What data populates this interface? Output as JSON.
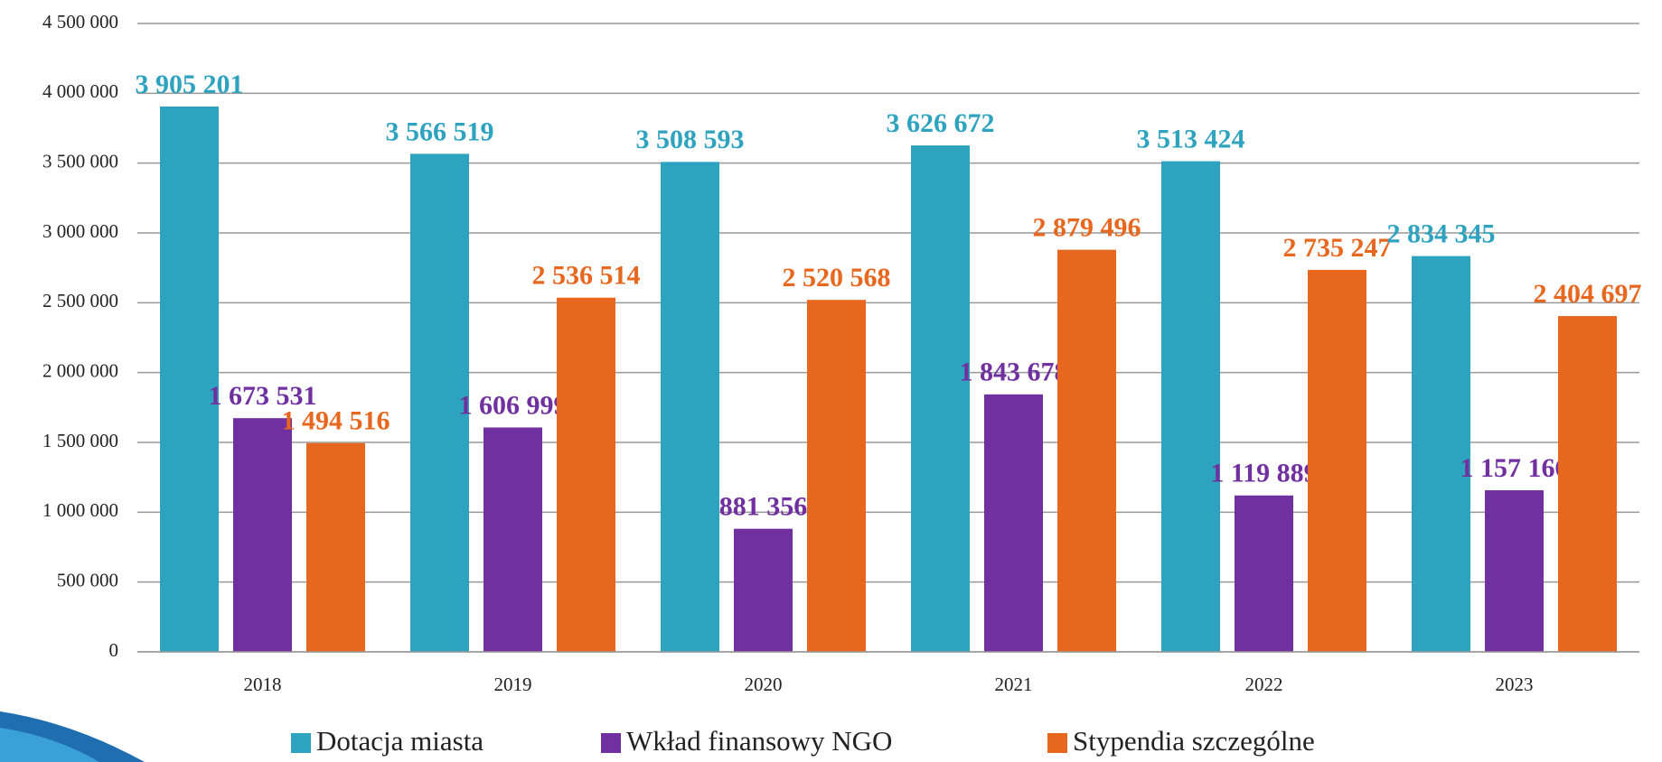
{
  "chart_data": {
    "type": "bar",
    "categories": [
      "2018",
      "2019",
      "2020",
      "2021",
      "2022",
      "2023"
    ],
    "series": [
      {
        "name": "Dotacja miasta",
        "color": "#2ea3c0",
        "values": [
          3905201,
          3566519,
          3508593,
          3626672,
          3513424,
          2834345
        ],
        "value_labels": [
          "3 905 201",
          "3 566 519",
          "3 508 593",
          "3 626 672",
          "3 513 424",
          "2 834 345"
        ]
      },
      {
        "name": "Wkład finansowy NGO",
        "color": "#7030a0",
        "values": [
          1673531,
          1606999,
          881356,
          1843678,
          1119889,
          1157166
        ],
        "value_labels": [
          "1 673 531",
          "1 606 999",
          "881 356",
          "1 843 678",
          "1 119 889",
          "1 157 166"
        ]
      },
      {
        "name": "Stypendia szczególne",
        "color": "#e8671f",
        "values": [
          1494516,
          2536514,
          2520568,
          2879496,
          2735247,
          2404697
        ],
        "value_labels": [
          "1 494 516",
          "2 536 514",
          "2 520 568",
          "2 879 496",
          "2 735 247",
          "2 404 697"
        ]
      }
    ],
    "ylim": [
      0,
      4500000
    ],
    "yticks": [
      0,
      {
        "value": 500000,
        "label": "500 000"
      },
      {
        "value": 1000000,
        "label": "1 000 000"
      },
      {
        "value": 1500000,
        "label": "1 500 000"
      },
      {
        "value": 2000000,
        "label": "2 000 000"
      },
      {
        "value": 2500000,
        "label": "2 500 000"
      },
      {
        "value": 3000000,
        "label": "3 000 000"
      },
      {
        "value": 3500000,
        "label": "3 500 000"
      },
      {
        "value": 4000000,
        "label": "4 000 000"
      },
      {
        "value": 4500000,
        "label": "4 500 000"
      }
    ],
    "grid": true,
    "legend": "bottom"
  }
}
